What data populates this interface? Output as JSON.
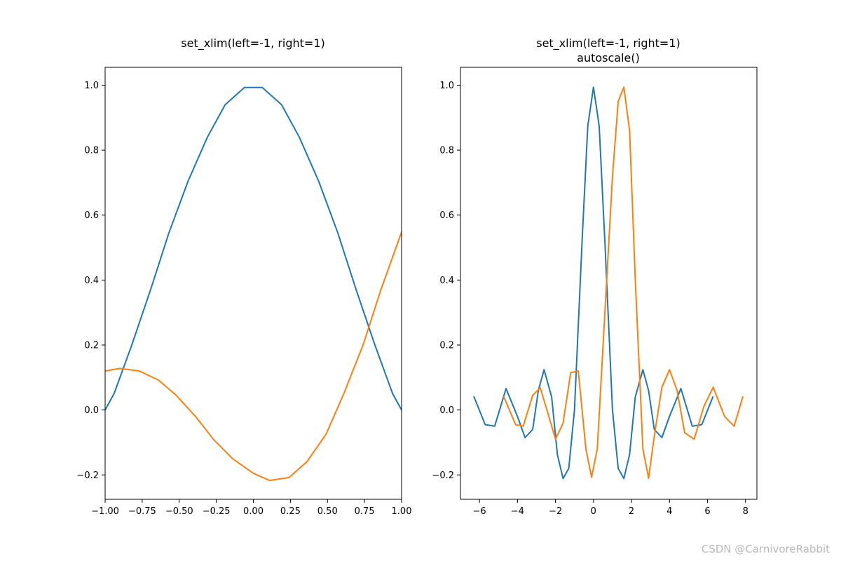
{
  "watermark": "CSDN @CarnivoreRabbit",
  "colors": {
    "series1": "#1f77b4",
    "series2": "#ff7f0e",
    "axes": "#000000",
    "background": "#ffffff"
  },
  "chart_data": [
    {
      "type": "line",
      "title": "set_xlim(left=-1, right=1)",
      "subtitle": "",
      "xlabel": "",
      "ylabel": "",
      "xlim": [
        -1,
        1
      ],
      "ylim": [
        -0.275,
        1.055
      ],
      "grid": false,
      "xticks": [
        -1.0,
        -0.75,
        -0.5,
        -0.25,
        0.0,
        0.25,
        0.5,
        0.75,
        1.0
      ],
      "xtick_labels": [
        "−1.00",
        "−0.75",
        "−0.50",
        "−0.25",
        "0.00",
        "0.25",
        "0.50",
        "0.75",
        "1.00"
      ],
      "yticks": [
        -0.2,
        0.0,
        0.2,
        0.4,
        0.6,
        0.8,
        1.0
      ],
      "ytick_labels": [
        "−0.2",
        "0.0",
        "0.2",
        "0.4",
        "0.6",
        "0.8",
        "1.0"
      ],
      "series": [
        {
          "color": "#1f77b4",
          "x": [
            -1.0,
            -0.94,
            -0.82,
            -0.69,
            -0.57,
            -0.44,
            -0.31,
            -0.19,
            -0.06,
            0.06,
            0.19,
            0.31,
            0.44,
            0.57,
            0.69,
            0.82,
            0.94,
            1.0
          ],
          "y": [
            0.0,
            0.05,
            0.2,
            0.375,
            0.545,
            0.705,
            0.84,
            0.94,
            0.993,
            0.993,
            0.94,
            0.84,
            0.705,
            0.545,
            0.375,
            0.2,
            0.05,
            0.0
          ]
        },
        {
          "color": "#ff7f0e",
          "x": [
            -1.0,
            -0.9,
            -0.77,
            -0.64,
            -0.52,
            -0.39,
            -0.27,
            -0.14,
            0.0,
            0.11,
            0.24,
            0.36,
            0.49,
            0.61,
            0.74,
            0.86,
            0.99,
            1.0
          ],
          "y": [
            0.12,
            0.128,
            0.12,
            0.092,
            0.045,
            -0.02,
            -0.09,
            -0.15,
            -0.195,
            -0.217,
            -0.208,
            -0.16,
            -0.075,
            0.05,
            0.2,
            0.37,
            0.535,
            0.548
          ]
        }
      ]
    },
    {
      "type": "line",
      "title": "set_xlim(left=-1, right=1)",
      "subtitle": "autoscale()",
      "xlabel": "",
      "ylabel": "",
      "xlim": [
        -7.0,
        8.6
      ],
      "ylim": [
        -0.275,
        1.055
      ],
      "grid": false,
      "xticks": [
        -6,
        -4,
        -2,
        0,
        2,
        4,
        6,
        8
      ],
      "xtick_labels": [
        "−6",
        "−4",
        "−2",
        "0",
        "2",
        "4",
        "6",
        "8"
      ],
      "yticks": [
        -0.2,
        0.0,
        0.2,
        0.4,
        0.6,
        0.8,
        1.0
      ],
      "ytick_labels": [
        "−0.2",
        "0.0",
        "0.2",
        "0.4",
        "0.6",
        "0.8",
        "1.0"
      ],
      "series": [
        {
          "color": "#1f77b4",
          "function": "sinc(x)",
          "x": [
            -6.283,
            -5.7,
            -5.2,
            -4.6,
            -4.0,
            -3.6,
            -3.2,
            -2.9,
            -2.6,
            -2.2,
            -1.9,
            -1.6,
            -1.3,
            -1.0,
            -0.6,
            -0.3,
            0.0,
            0.3,
            0.6,
            1.0,
            1.3,
            1.6,
            1.9,
            2.2,
            2.6,
            2.9,
            3.2,
            3.6,
            4.0,
            4.6,
            5.2,
            5.7,
            6.283
          ],
          "y": [
            0.04,
            -0.045,
            -0.05,
            0.066,
            -0.02,
            -0.085,
            -0.06,
            0.06,
            0.124,
            0.04,
            -0.137,
            -0.211,
            -0.18,
            0.0,
            0.519,
            0.874,
            0.994,
            0.874,
            0.519,
            0.0,
            -0.18,
            -0.211,
            -0.137,
            0.04,
            0.124,
            0.06,
            -0.06,
            -0.085,
            -0.02,
            0.066,
            -0.05,
            -0.045,
            0.04
          ]
        },
        {
          "color": "#ff7f0e",
          "function": "sinc(x - π/2)",
          "x": [
            -4.712,
            -4.1,
            -3.7,
            -3.2,
            -2.8,
            -2.4,
            -2.0,
            -1.6,
            -1.2,
            -0.8,
            -0.4,
            -0.1,
            0.2,
            0.6,
            1.0,
            1.3,
            1.6,
            1.9,
            2.2,
            2.6,
            2.9,
            3.2,
            3.6,
            4.0,
            4.4,
            4.8,
            5.3,
            5.8,
            6.3,
            6.9,
            7.4,
            7.854
          ],
          "y": [
            0.04,
            -0.045,
            -0.05,
            0.045,
            0.068,
            -0.01,
            -0.09,
            -0.04,
            0.115,
            0.12,
            -0.12,
            -0.207,
            -0.12,
            0.3,
            0.72,
            0.95,
            0.994,
            0.86,
            0.4,
            -0.12,
            -0.21,
            -0.08,
            0.07,
            0.124,
            0.06,
            -0.07,
            -0.09,
            0.01,
            0.07,
            -0.02,
            -0.05,
            0.04
          ]
        }
      ]
    }
  ]
}
